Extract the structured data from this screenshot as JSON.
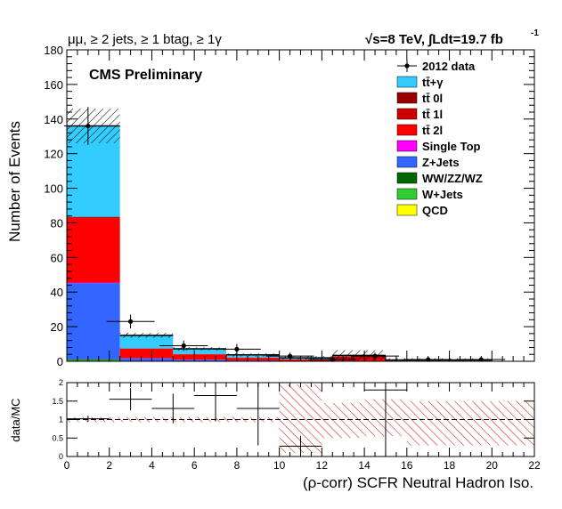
{
  "chart_data": [
    {
      "type": "bar",
      "stacked": true,
      "header_left": "μμ, ≥ 2 jets, ≥ 1 btag, ≥ 1γ",
      "header_right": "√s=8 TeV,  ∫Ldt=19.7 fb",
      "header_right_sup": "-1",
      "annotation": "CMS Preliminary",
      "ylabel": "Number of Events",
      "xlim": [
        0,
        22
      ],
      "ylim": [
        0,
        180
      ],
      "y_ticks": [
        "0",
        "20",
        "40",
        "60",
        "80",
        "100",
        "120",
        "140",
        "160",
        "180"
      ],
      "bin_edges": [
        0,
        2.5,
        5,
        7.5,
        10,
        12.5,
        15,
        17.5,
        20
      ],
      "series": [
        {
          "name": "tt̄+γ",
          "color": "#33ccff",
          "values": [
            52.5,
            7.5,
            3.0,
            1.5,
            0.8,
            0.5,
            0.4,
            0.4
          ]
        },
        {
          "name": "tt̄ 0l",
          "color": "#990000",
          "values": [
            0.5,
            0.1,
            0.1,
            0.1,
            0.1,
            0.1,
            0.0,
            0.0
          ]
        },
        {
          "name": "tt̄ 1l",
          "color": "#cc0000",
          "values": [
            0.5,
            0.1,
            0.1,
            0.1,
            0.1,
            1.5,
            0.0,
            0.0
          ]
        },
        {
          "name": "tt̄ 2l",
          "color": "#ff0000",
          "values": [
            37.0,
            5.5,
            3.0,
            1.5,
            0.8,
            1.0,
            0.3,
            0.3
          ]
        },
        {
          "name": "Single Top",
          "color": "#ff00ff",
          "values": [
            0.3,
            0.1,
            0.1,
            0.0,
            0.0,
            0.0,
            0.0,
            0.0
          ]
        },
        {
          "name": "Z+Jets",
          "color": "#3366ff",
          "values": [
            44.0,
            1.5,
            0.7,
            0.5,
            0.2,
            0.3,
            0.1,
            0.1
          ]
        },
        {
          "name": "WW/ZZ/WZ",
          "color": "#006600",
          "values": [
            0.5,
            0.1,
            0.1,
            0.0,
            0.0,
            0.0,
            0.0,
            0.0
          ]
        },
        {
          "name": "W+Jets",
          "color": "#33cc33",
          "values": [
            0.5,
            0.1,
            0.1,
            0.0,
            0.0,
            0.0,
            0.0,
            0.0
          ]
        },
        {
          "name": "QCD",
          "color": "#ffff00",
          "values": [
            0.2,
            0.0,
            0.0,
            0.0,
            0.0,
            0.0,
            0.0,
            0.0
          ]
        }
      ],
      "data": {
        "name": "2012 data",
        "points": [
          {
            "x": 1.0,
            "y": 136,
            "err": 11
          },
          {
            "x": 3.0,
            "y": 23,
            "err": 4
          },
          {
            "x": 5.5,
            "y": 9,
            "err": 3
          },
          {
            "x": 8.0,
            "y": 7,
            "err": 3
          },
          {
            "x": 10.5,
            "y": 3,
            "err": 2
          },
          {
            "x": 12.5,
            "y": 1,
            "err": 1
          },
          {
            "x": 14.5,
            "y": 3,
            "err": 2
          },
          {
            "x": 17.0,
            "y": 1,
            "err": 1
          },
          {
            "x": 19.5,
            "y": 1,
            "err": 1
          }
        ]
      },
      "mc_uncertainty": [
        10,
        1.5,
        1,
        1,
        1,
        3,
        1,
        1
      ]
    },
    {
      "type": "scatter",
      "ylabel": "data/MC",
      "xlabel": "(ρ-corr) SCFR Neutral Hadron Iso.",
      "xlim": [
        0,
        22
      ],
      "ylim": [
        0,
        2
      ],
      "x_ticks": [
        "0",
        "2",
        "4",
        "6",
        "8",
        "10",
        "12",
        "14",
        "16",
        "18",
        "20",
        "22"
      ],
      "y_ticks": [
        "0",
        "0.5",
        "1",
        "1.5",
        "2"
      ],
      "points": [
        {
          "x": 1.0,
          "y": 1.02,
          "xerr": 1.0,
          "yerr": 0.08
        },
        {
          "x": 3.0,
          "y": 1.55,
          "xerr": 1.0,
          "yerr": 0.3
        },
        {
          "x": 5.0,
          "y": 1.3,
          "xerr": 1.0,
          "yerr": 0.4
        },
        {
          "x": 7.0,
          "y": 1.65,
          "xerr": 1.0,
          "yerr": 0.7
        },
        {
          "x": 9.0,
          "y": 1.3,
          "xerr": 1.0,
          "yerr": 1.0
        },
        {
          "x": 11.0,
          "y": 0.28,
          "xerr": 1.0,
          "yerr": 0.28
        },
        {
          "x": 15.0,
          "y": 1.8,
          "xerr": 1.0,
          "yerr": 1.8
        }
      ],
      "uncertainty_bands": [
        {
          "x0": 0,
          "x1": 10,
          "lo": 0.93,
          "hi": 1.07
        },
        {
          "x0": 10,
          "x1": 12,
          "lo": 0.1,
          "hi": 1.95
        },
        {
          "x0": 12,
          "x1": 14,
          "lo": 0.5,
          "hi": 1.45
        },
        {
          "x0": 14,
          "x1": 16,
          "lo": 0.55,
          "hi": 1.55
        },
        {
          "x0": 16,
          "x1": 22,
          "lo": 0.3,
          "hi": 1.5
        }
      ]
    }
  ]
}
